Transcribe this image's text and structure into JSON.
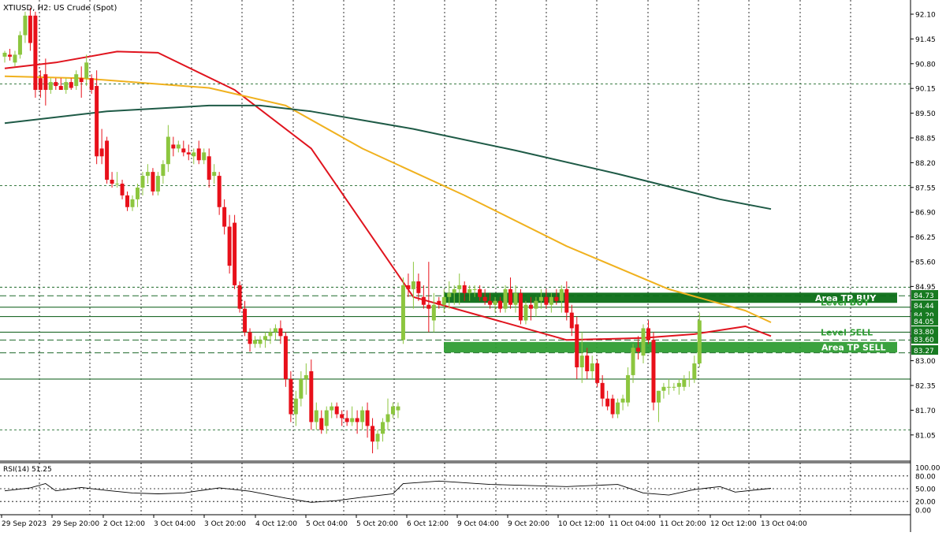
{
  "header": {
    "symbol_label": "XTIUSD, H2:  US Crude (Spot)"
  },
  "colors": {
    "background": "#ffffff",
    "grid": "#000000",
    "bull": "#8cc63f",
    "bear": "#e8101a",
    "ma_red": "#e0141e",
    "ma_orange": "#f0b11e",
    "ma_dark": "#1e5a46",
    "zone_green": "#0b6e16",
    "zone_green_light": "#2f9d34",
    "level_line": "#1f6a2a",
    "rsi_line": "#000000",
    "label_box": "#177a21",
    "label_text": "#ffffff"
  },
  "chart_data": {
    "type": "candlestick",
    "instrument": "XTIUSD",
    "timeframe": "H2",
    "ylim": [
      80.5,
      92.3
    ],
    "y_ticks": [
      "92.10",
      "91.45",
      "90.80",
      "90.15",
      "89.50",
      "88.85",
      "88.20",
      "87.55",
      "86.90",
      "86.25",
      "85.60",
      "84.95",
      "84.30",
      "83.65",
      "83.00",
      "82.35",
      "81.70",
      "81.05"
    ],
    "x_ticks": [
      "29 Sep 2023",
      "29 Sep 20:00",
      "2 Oct 12:00",
      "3 Oct 04:00",
      "3 Oct 20:00",
      "4 Oct 12:00",
      "5 Oct 04:00",
      "5 Oct 20:00",
      "6 Oct 12:00",
      "9 Oct 04:00",
      "9 Oct 20:00",
      "10 Oct 12:00",
      "11 Oct 04:00",
      "11 Oct 20:00",
      "12 Oct 12:00",
      "13 Oct 04:00"
    ],
    "candles": [
      [
        90.85,
        91.0,
        90.7,
        90.95
      ],
      [
        90.9,
        91.05,
        90.75,
        90.85
      ],
      [
        90.7,
        91.0,
        90.6,
        90.9
      ],
      [
        90.9,
        91.5,
        90.8,
        91.4
      ],
      [
        91.4,
        92.0,
        91.2,
        91.9
      ],
      [
        91.9,
        92.1,
        91.0,
        91.2
      ],
      [
        91.9,
        92.0,
        89.8,
        90.0
      ],
      [
        90.3,
        90.5,
        89.8,
        90.0
      ],
      [
        90.4,
        90.8,
        89.6,
        90.0
      ],
      [
        90.0,
        90.3,
        89.9,
        90.2
      ],
      [
        90.2,
        90.3,
        90.0,
        90.1
      ],
      [
        90.1,
        90.3,
        90.0,
        90.0
      ],
      [
        90.0,
        90.3,
        89.9,
        90.2
      ],
      [
        90.2,
        90.3,
        90.0,
        90.05
      ],
      [
        90.1,
        90.5,
        90.0,
        90.4
      ],
      [
        90.3,
        90.6,
        89.8,
        90.2
      ],
      [
        90.3,
        90.9,
        90.1,
        90.7
      ],
      [
        90.3,
        90.4,
        89.9,
        90.0
      ],
      [
        90.1,
        90.5,
        88.1,
        88.3
      ],
      [
        88.5,
        89.0,
        88.1,
        88.3
      ],
      [
        88.7,
        88.8,
        87.6,
        87.7
      ],
      [
        87.7,
        87.9,
        87.5,
        87.6
      ],
      [
        87.6,
        87.9,
        87.5,
        87.6
      ],
      [
        87.6,
        87.7,
        87.2,
        87.3
      ],
      [
        87.3,
        87.4,
        86.9,
        87.0
      ],
      [
        87.0,
        87.3,
        86.9,
        87.2
      ],
      [
        87.2,
        87.6,
        87.0,
        87.5
      ],
      [
        87.5,
        87.9,
        87.3,
        87.8
      ],
      [
        87.8,
        88.1,
        87.6,
        87.9
      ],
      [
        87.9,
        88.0,
        87.3,
        87.4
      ],
      [
        87.4,
        87.9,
        87.3,
        87.8
      ],
      [
        87.8,
        88.2,
        87.6,
        88.1
      ],
      [
        88.1,
        89.1,
        87.9,
        88.8
      ],
      [
        88.6,
        88.8,
        88.3,
        88.5
      ],
      [
        88.5,
        88.7,
        88.4,
        88.6
      ],
      [
        88.5,
        88.7,
        88.3,
        88.4
      ],
      [
        88.4,
        88.6,
        88.2,
        88.35
      ],
      [
        88.3,
        88.5,
        88.1,
        88.4
      ],
      [
        88.5,
        88.7,
        88.1,
        88.2
      ],
      [
        88.2,
        88.5,
        88.1,
        88.4
      ],
      [
        88.3,
        88.5,
        87.5,
        87.7
      ],
      [
        87.8,
        88.1,
        87.6,
        87.9
      ],
      [
        87.8,
        87.9,
        86.8,
        87.0
      ],
      [
        87.0,
        87.2,
        86.3,
        86.5
      ],
      [
        86.5,
        86.8,
        85.3,
        85.5
      ],
      [
        86.6,
        86.8,
        84.9,
        85.0
      ],
      [
        85.0,
        85.1,
        84.3,
        84.4
      ],
      [
        84.4,
        84.6,
        83.7,
        83.8
      ],
      [
        83.8,
        83.9,
        83.3,
        83.5
      ],
      [
        83.5,
        83.7,
        83.4,
        83.6
      ],
      [
        83.5,
        83.7,
        83.4,
        83.6
      ],
      [
        83.6,
        83.8,
        83.4,
        83.7
      ],
      [
        83.7,
        83.9,
        83.5,
        83.8
      ],
      [
        83.8,
        84.0,
        83.6,
        83.9
      ],
      [
        83.9,
        84.1,
        83.5,
        83.7
      ],
      [
        83.7,
        83.8,
        82.4,
        82.6
      ],
      [
        82.6,
        82.8,
        81.5,
        81.7
      ],
      [
        81.7,
        82.3,
        81.4,
        82.1
      ],
      [
        82.1,
        82.8,
        81.9,
        82.6
      ],
      [
        82.6,
        83.0,
        82.2,
        82.7
      ],
      [
        82.8,
        83.1,
        81.3,
        81.5
      ],
      [
        81.5,
        82.0,
        81.3,
        81.8
      ],
      [
        81.6,
        81.8,
        81.2,
        81.3
      ],
      [
        81.4,
        81.9,
        81.2,
        81.8
      ],
      [
        81.8,
        82.0,
        81.6,
        81.9
      ],
      [
        81.9,
        82.0,
        81.6,
        81.7
      ],
      [
        81.7,
        81.8,
        81.4,
        81.6
      ],
      [
        81.6,
        81.8,
        81.4,
        81.5
      ],
      [
        81.5,
        81.9,
        81.4,
        81.6
      ],
      [
        81.6,
        81.8,
        81.2,
        81.5
      ],
      [
        81.5,
        81.9,
        81.3,
        81.8
      ],
      [
        81.8,
        82.0,
        81.1,
        81.4
      ],
      [
        81.4,
        81.6,
        80.7,
        81.0
      ],
      [
        81.0,
        81.3,
        80.8,
        81.2
      ],
      [
        81.2,
        81.6,
        81.0,
        81.5
      ],
      [
        81.5,
        82.1,
        81.3,
        81.7
      ],
      [
        81.7,
        82.0,
        81.6,
        81.9
      ],
      [
        81.8,
        82.0,
        81.6,
        81.9
      ],
      [
        83.6,
        85.2,
        83.5,
        85.0
      ],
      [
        85.0,
        85.3,
        84.7,
        84.9
      ],
      [
        84.9,
        85.6,
        84.4,
        85.1
      ],
      [
        85.1,
        85.3,
        84.6,
        84.8
      ],
      [
        84.7,
        85.0,
        84.4,
        84.5
      ],
      [
        84.5,
        85.6,
        83.8,
        84.4
      ],
      [
        84.1,
        84.8,
        83.8,
        84.5
      ],
      [
        84.6,
        84.7,
        84.4,
        84.5
      ],
      [
        84.5,
        84.9,
        84.3,
        84.7
      ],
      [
        84.7,
        85.1,
        84.4,
        84.8
      ],
      [
        84.8,
        85.0,
        84.5,
        84.9
      ],
      [
        84.9,
        85.3,
        84.5,
        85.0
      ],
      [
        85.0,
        85.1,
        84.6,
        84.8
      ],
      [
        84.8,
        85.0,
        84.6,
        84.9
      ],
      [
        84.9,
        85.0,
        84.7,
        84.9
      ],
      [
        84.9,
        85.0,
        84.6,
        84.7
      ],
      [
        84.7,
        84.9,
        84.5,
        84.6
      ],
      [
        84.6,
        84.8,
        84.4,
        84.5
      ],
      [
        84.5,
        84.7,
        84.3,
        84.6
      ],
      [
        84.6,
        84.7,
        84.3,
        84.4
      ],
      [
        84.4,
        85.0,
        84.3,
        84.9
      ],
      [
        84.9,
        85.2,
        84.4,
        84.5
      ],
      [
        84.5,
        85.0,
        84.3,
        84.8
      ],
      [
        84.8,
        84.9,
        84.0,
        84.1
      ],
      [
        84.1,
        84.6,
        84.0,
        84.5
      ],
      [
        84.5,
        84.7,
        84.1,
        84.4
      ],
      [
        84.4,
        84.7,
        84.2,
        84.6
      ],
      [
        84.6,
        84.9,
        84.4,
        84.7
      ],
      [
        84.7,
        84.9,
        84.4,
        84.5
      ],
      [
        84.5,
        84.8,
        84.3,
        84.7
      ],
      [
        84.7,
        84.9,
        84.5,
        84.6
      ],
      [
        84.6,
        85.0,
        84.3,
        84.9
      ],
      [
        84.9,
        85.1,
        84.1,
        84.3
      ],
      [
        84.3,
        84.5,
        83.7,
        83.9
      ],
      [
        84.0,
        84.2,
        82.6,
        82.9
      ],
      [
        82.9,
        83.8,
        82.5,
        83.2
      ],
      [
        83.2,
        83.4,
        82.6,
        82.8
      ],
      [
        82.8,
        83.2,
        82.6,
        83.0
      ],
      [
        83.0,
        83.1,
        82.4,
        82.5
      ],
      [
        82.5,
        82.7,
        81.9,
        82.1
      ],
      [
        82.1,
        82.3,
        81.8,
        81.9
      ],
      [
        82.1,
        82.2,
        81.6,
        81.7
      ],
      [
        81.7,
        82.1,
        81.6,
        82.0
      ],
      [
        82.0,
        82.2,
        81.8,
        82.1
      ],
      [
        82.0,
        82.9,
        81.9,
        82.7
      ],
      [
        82.7,
        83.5,
        82.5,
        83.4
      ],
      [
        83.4,
        83.7,
        83.1,
        83.3
      ],
      [
        83.2,
        84.0,
        83.0,
        83.9
      ],
      [
        83.9,
        84.1,
        83.5,
        83.6
      ],
      [
        83.6,
        83.8,
        81.8,
        82.0
      ],
      [
        82.0,
        82.3,
        81.5,
        82.3
      ],
      [
        82.3,
        82.5,
        82.1,
        82.4
      ],
      [
        82.4,
        82.6,
        82.2,
        82.4
      ],
      [
        82.4,
        82.5,
        82.3,
        82.4
      ],
      [
        82.4,
        82.6,
        82.2,
        82.5
      ],
      [
        82.4,
        82.7,
        82.3,
        82.6
      ],
      [
        82.6,
        82.8,
        82.4,
        82.6
      ],
      [
        82.6,
        83.2,
        82.5,
        83.0
      ],
      [
        83.0,
        84.3,
        82.9,
        84.1
      ]
    ],
    "moving_averages": [
      {
        "color_key": "ma_red",
        "points": [
          [
            0,
            90.55
          ],
          [
            10,
            90.7
          ],
          [
            22,
            90.98
          ],
          [
            30,
            90.95
          ],
          [
            45,
            90.0
          ],
          [
            60,
            88.5
          ],
          [
            80,
            84.7
          ],
          [
            95,
            84.15
          ],
          [
            110,
            83.6
          ],
          [
            125,
            83.65
          ],
          [
            135,
            83.75
          ],
          [
            145,
            83.95
          ],
          [
            150,
            83.7
          ]
        ]
      },
      {
        "color_key": "ma_orange",
        "points": [
          [
            0,
            90.35
          ],
          [
            15,
            90.3
          ],
          [
            25,
            90.2
          ],
          [
            40,
            90.05
          ],
          [
            55,
            89.6
          ],
          [
            70,
            88.5
          ],
          [
            90,
            87.3
          ],
          [
            110,
            86.0
          ],
          [
            130,
            84.9
          ],
          [
            145,
            84.35
          ],
          [
            150,
            84.05
          ]
        ]
      },
      {
        "color_key": "ma_dark",
        "points": [
          [
            0,
            89.15
          ],
          [
            20,
            89.45
          ],
          [
            40,
            89.6
          ],
          [
            50,
            89.6
          ],
          [
            60,
            89.45
          ],
          [
            80,
            89.0
          ],
          [
            100,
            88.45
          ],
          [
            120,
            87.85
          ],
          [
            140,
            87.2
          ],
          [
            150,
            86.95
          ]
        ]
      }
    ],
    "zones": [
      {
        "label": "Area TP BUY",
        "from": 84.55,
        "to": 84.81
      },
      {
        "label": "Area TP SELL",
        "from": 83.28,
        "to": 83.55
      }
    ],
    "levels": [
      {
        "label": "Level BUY",
        "value": 84.44,
        "style": "solid",
        "show_label": true
      },
      {
        "label": "Level SELL",
        "value": 83.8,
        "style": "solid",
        "show_label": true
      },
      {
        "label": "",
        "value": 84.2,
        "style": "solid",
        "show_label": false
      },
      {
        "label": "",
        "value": 84.73,
        "style": "dash",
        "show_label": false
      },
      {
        "label": "",
        "value": 83.6,
        "style": "dash",
        "show_label": false
      },
      {
        "label": "",
        "value": 83.27,
        "style": "dash",
        "show_label": false
      },
      {
        "label": "",
        "value": 82.6,
        "style": "solid",
        "show_label": false
      }
    ],
    "dotted_levels": [
      90.15,
      87.55,
      84.95,
      81.3
    ],
    "right_labels": [
      "84.73",
      "84.44",
      "84.20",
      "84.05",
      "83.80",
      "83.60",
      "83.27"
    ],
    "rsi": {
      "label": "RSI(14) 51.25",
      "ylim": [
        0,
        100
      ],
      "ticks": [
        "100.00",
        "80.00",
        "50.00",
        "20.00",
        "0.00"
      ],
      "levels": [
        80,
        50,
        20
      ],
      "points": [
        [
          0,
          45
        ],
        [
          5,
          52
        ],
        [
          8,
          62
        ],
        [
          10,
          45
        ],
        [
          15,
          53
        ],
        [
          20,
          46
        ],
        [
          25,
          40
        ],
        [
          30,
          38
        ],
        [
          35,
          40
        ],
        [
          42,
          52
        ],
        [
          48,
          44
        ],
        [
          55,
          28
        ],
        [
          60,
          18
        ],
        [
          65,
          22
        ],
        [
          70,
          30
        ],
        [
          76,
          38
        ],
        [
          78,
          62
        ],
        [
          85,
          68
        ],
        [
          95,
          60
        ],
        [
          110,
          55
        ],
        [
          120,
          60
        ],
        [
          125,
          40
        ],
        [
          130,
          35
        ],
        [
          135,
          48
        ],
        [
          140,
          55
        ],
        [
          143,
          42
        ],
        [
          150,
          51
        ]
      ]
    }
  }
}
